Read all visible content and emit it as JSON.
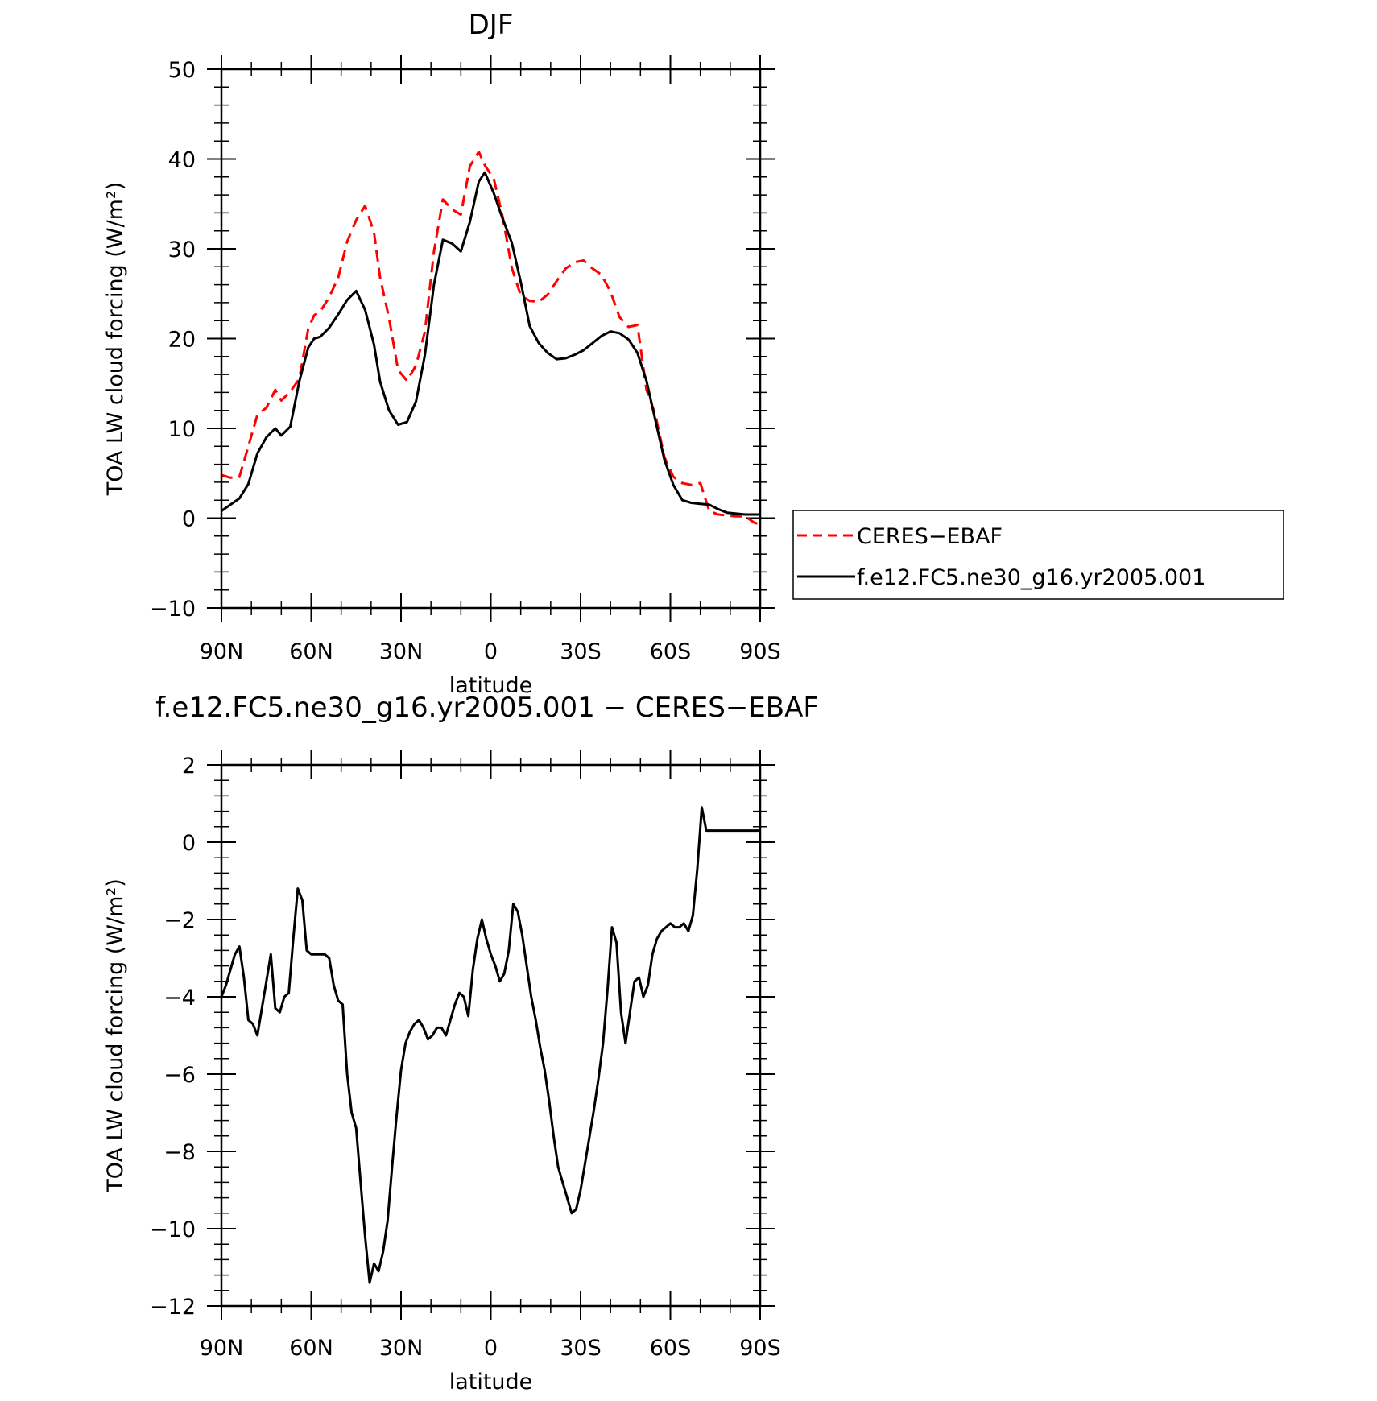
{
  "chart_data": [
    {
      "type": "line",
      "title": "DJF",
      "xlabel": "latitude",
      "ylabel": "TOA LW cloud forcing (W/m²)",
      "xlim": [
        90,
        -90
      ],
      "ylim": [
        -10,
        50
      ],
      "x_ticks": [
        90,
        60,
        30,
        0,
        -30,
        -60,
        -90
      ],
      "x_tick_labels": [
        "90N",
        "60N",
        "30N",
        "0",
        "30S",
        "60S",
        "90S"
      ],
      "y_ticks": [
        -10,
        0,
        10,
        20,
        30,
        40,
        50
      ],
      "y_tick_labels": [
        "−10",
        "0",
        "10",
        "20",
        "30",
        "40",
        "50"
      ],
      "legend_position": "right",
      "series": [
        {
          "name": "CERES−EBAF",
          "color": "#ff0000",
          "style": "dashed",
          "x": [
            90,
            87,
            84,
            81,
            78,
            75,
            72,
            70,
            67,
            64,
            61,
            59,
            57,
            54,
            51,
            48,
            45,
            42,
            39,
            37,
            34,
            31,
            28,
            25,
            22,
            19,
            16,
            13,
            10,
            7,
            4,
            2,
            -1,
            -4,
            -7,
            -10,
            -13,
            -16,
            -19,
            -22,
            -25,
            -28,
            -31,
            -34,
            -37,
            -40,
            -43,
            -46,
            -49,
            -52,
            -55,
            -58,
            -61,
            -64,
            -67,
            -70,
            -73,
            -76,
            -79,
            -82,
            -85,
            -88,
            -90
          ],
          "y": [
            4.8,
            4.5,
            4.6,
            8,
            11.5,
            12.3,
            14.3,
            13.1,
            14.1,
            15.5,
            21.1,
            22.6,
            23,
            24.6,
            26.8,
            30.8,
            33.2,
            34.8,
            31.8,
            26.8,
            22.3,
            16.5,
            15.3,
            17,
            20.8,
            29.7,
            35.5,
            34.4,
            33.8,
            39.2,
            40.8,
            39.3,
            37.8,
            33.5,
            27.9,
            24.8,
            24.2,
            24.1,
            24.9,
            26.4,
            27.8,
            28.5,
            28.7,
            27.8,
            27.1,
            25.2,
            22.4,
            21.3,
            21.5,
            14.3,
            11.5,
            6.8,
            4.6,
            3.9,
            3.7,
            3.9,
            0.8,
            0.4,
            0.3,
            0.2,
            0.2,
            -0.5,
            -0.7
          ]
        },
        {
          "name": "f.e12.FC5.ne30_g16.yr2005.001",
          "color": "#000000",
          "style": "solid",
          "x": [
            90,
            87,
            84,
            81,
            78,
            75,
            72,
            70,
            67,
            64,
            61,
            59,
            57,
            54,
            51,
            48,
            45,
            42,
            39,
            37,
            34,
            31,
            28,
            25,
            22,
            19,
            16,
            13,
            10,
            7,
            4,
            2,
            -1,
            -4,
            -7,
            -10,
            -13,
            -16,
            -19,
            -22,
            -25,
            -28,
            -31,
            -34,
            -37,
            -40,
            -43,
            -46,
            -49,
            -52,
            -55,
            -58,
            -61,
            -64,
            -67,
            -70,
            -73,
            -76,
            -79,
            -82,
            -85,
            -88,
            -90
          ],
          "y": [
            0.8,
            1.5,
            2.2,
            3.8,
            7.2,
            9,
            10,
            9.2,
            10.2,
            15.2,
            19,
            20,
            20.2,
            21.2,
            22.7,
            24.3,
            25.3,
            23.2,
            19.3,
            15.2,
            12,
            10.4,
            10.7,
            13,
            18.2,
            26,
            31,
            30.6,
            29.7,
            33,
            37.5,
            38.5,
            36.2,
            33.3,
            30.7,
            26.3,
            21.4,
            19.5,
            18.4,
            17.7,
            17.8,
            18.2,
            18.7,
            19.5,
            20.3,
            20.8,
            20.6,
            19.9,
            18.4,
            15.3,
            10.9,
            6.5,
            3.7,
            2,
            1.7,
            1.6,
            1.5,
            1,
            0.6,
            0.5,
            0.4,
            0.4,
            0.4
          ]
        }
      ]
    },
    {
      "type": "line",
      "title": "f.e12.FC5.ne30_g16.yr2005.001 − CERES−EBAF",
      "xlabel": "latitude",
      "ylabel": "TOA LW cloud forcing (W/m²)",
      "xlim": [
        90,
        -90
      ],
      "ylim": [
        -12,
        2
      ],
      "x_ticks": [
        90,
        60,
        30,
        0,
        -30,
        -60,
        -90
      ],
      "x_tick_labels": [
        "90N",
        "60N",
        "30N",
        "0",
        "30S",
        "60S",
        "90S"
      ],
      "y_ticks": [
        -12,
        -10,
        -8,
        -6,
        -4,
        -2,
        0,
        2
      ],
      "y_tick_labels": [
        "−12",
        "−10",
        "−8",
        "−6",
        "−4",
        "−2",
        "0",
        "2"
      ],
      "series": [
        {
          "name": "",
          "color": "#000000",
          "style": "solid",
          "x": [
            90,
            88.5,
            87,
            85.5,
            84,
            82.5,
            81,
            79.5,
            78,
            76.5,
            75,
            73.5,
            72,
            70.5,
            69,
            67.5,
            66,
            64.5,
            63,
            61.5,
            60,
            58.5,
            57,
            55.5,
            54,
            52.5,
            51,
            49.5,
            48,
            46.5,
            45,
            43.5,
            42,
            40.5,
            39,
            37.5,
            36,
            34.5,
            33,
            31.5,
            30,
            28.5,
            27,
            25.5,
            24,
            22.5,
            21,
            19.5,
            18,
            16.5,
            15,
            13.5,
            12,
            10.5,
            9,
            7.5,
            6,
            4.5,
            3,
            1.5,
            0,
            -1.5,
            -3,
            -4.5,
            -6,
            -7.5,
            -9,
            -10.5,
            -12,
            -13.5,
            -15,
            -16.5,
            -18,
            -19.5,
            -21,
            -22.5,
            -24,
            -25.5,
            -27,
            -28.5,
            -30,
            -31.5,
            -33,
            -34.5,
            -36,
            -37.5,
            -39,
            -40.5,
            -42,
            -43.5,
            -45,
            -46.5,
            -48,
            -49.5,
            -51,
            -52.5,
            -54,
            -55.5,
            -57,
            -58.5,
            -60,
            -61.5,
            -63,
            -64.5,
            -66,
            -67.5,
            -69,
            -70.5,
            -72,
            -73.5,
            -75,
            -76.5,
            -78,
            -79.5,
            -81,
            -82.5,
            -84,
            -85.5,
            -87,
            -88.5,
            -90
          ],
          "y": [
            -4.0,
            -3.7,
            -3.3,
            -2.9,
            -2.7,
            -3.5,
            -4.6,
            -4.7,
            -5.0,
            -4.3,
            -3.6,
            -2.9,
            -4.3,
            -4.4,
            -4.0,
            -3.9,
            -2.5,
            -1.2,
            -1.5,
            -2.8,
            -2.9,
            -2.9,
            -2.9,
            -2.9,
            -3.0,
            -3.7,
            -4.1,
            -4.2,
            -6.0,
            -7.0,
            -7.4,
            -8.8,
            -10.2,
            -11.4,
            -10.9,
            -11.1,
            -10.6,
            -9.8,
            -8.4,
            -7.1,
            -5.9,
            -5.2,
            -4.9,
            -4.7,
            -4.6,
            -4.8,
            -5.1,
            -5.0,
            -4.8,
            -4.8,
            -5.0,
            -4.6,
            -4.2,
            -3.9,
            -4.0,
            -4.5,
            -3.3,
            -2.5,
            -2.0,
            -2.5,
            -2.9,
            -3.2,
            -3.6,
            -3.4,
            -2.8,
            -1.6,
            -1.8,
            -2.4,
            -3.2,
            -4.0,
            -4.6,
            -5.3,
            -5.9,
            -6.7,
            -7.6,
            -8.4,
            -8.8,
            -9.2,
            -9.6,
            -9.5,
            -9.0,
            -8.3,
            -7.6,
            -6.9,
            -6.1,
            -5.2,
            -3.8,
            -2.2,
            -2.6,
            -4.4,
            -5.2,
            -4.4,
            -3.6,
            -3.5,
            -4.0,
            -3.7,
            -2.9,
            -2.5,
            -2.3,
            -2.2,
            -2.1,
            -2.2,
            -2.2,
            -2.1,
            -2.3,
            -1.9,
            -0.7,
            0.9,
            0.3,
            0.3,
            0.3,
            0.3,
            0.3,
            0.3,
            0.3,
            0.3,
            0.3,
            0.3,
            0.3,
            0.3,
            0.3
          ]
        }
      ]
    }
  ]
}
